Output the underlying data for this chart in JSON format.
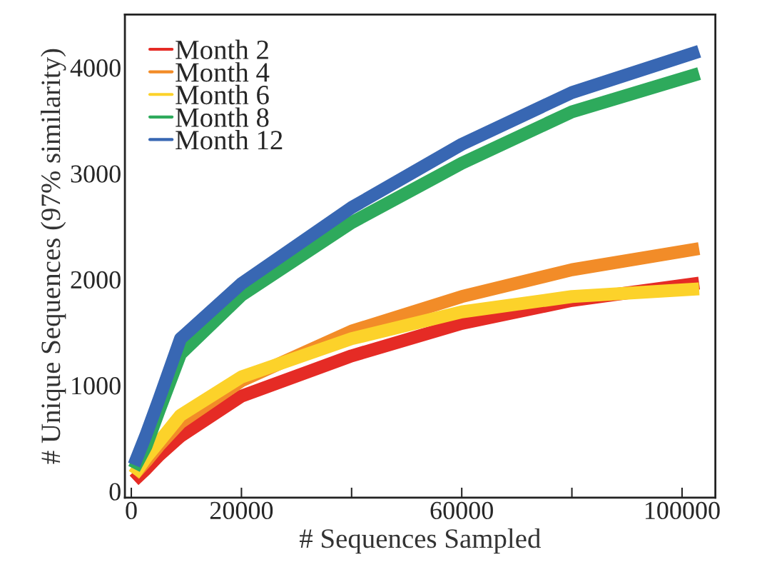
{
  "chart_data": {
    "type": "line",
    "xlabel": "# Sequences Sampled",
    "ylabel": "# Unique Sequences (97% similarity)",
    "x": [
      500,
      2700,
      5000,
      8930,
      20000,
      40000,
      60000,
      80000,
      103100
    ],
    "series": [
      {
        "name": "Month 2",
        "color": "#e52b25",
        "values": [
          103,
          211,
          337,
          519,
          898,
          1278,
          1585,
          1801,
          1965
        ]
      },
      {
        "name": "Month 4",
        "color": "#f28c28",
        "values": [
          157,
          283,
          428,
          648,
          1043,
          1512,
          1838,
          2091,
          2290
        ]
      },
      {
        "name": "Month 6",
        "color": "#fcd22a",
        "values": [
          157,
          320,
          465,
          717,
          1079,
          1440,
          1693,
          1838,
          1910
        ]
      },
      {
        "name": "Month 8",
        "color": "#2eaa5c",
        "values": [
          211,
          428,
          755,
          1295,
          1850,
          2536,
          3096,
          3582,
          3943
        ]
      },
      {
        "name": "Month 12",
        "color": "#3867b3",
        "values": [
          248,
          536,
          863,
          1440,
          1960,
          2678,
          3275,
          3764,
          4153
        ]
      }
    ],
    "xlim": [
      -1160,
      106050
    ],
    "ylim": [
      -60,
      4500
    ],
    "xticks": [
      0,
      20000,
      {
        "value": 40000,
        "label": null
      },
      60000,
      {
        "value": 80000,
        "label": null
      },
      100000
    ],
    "yticks": [
      0,
      1000,
      2000,
      3000,
      4000
    ],
    "grid": false,
    "legend": "top left",
    "line_style": "solid",
    "marker": "none"
  }
}
